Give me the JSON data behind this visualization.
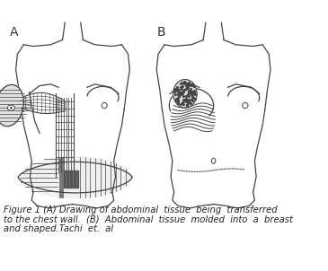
{
  "caption_line1": "Figure 1 (A) Drawing of abdominal  tissue  being  transferred",
  "caption_line2": "to the chest wall.  (B)  Abdominal  tissue  molded  into  a  breast",
  "caption_line3": "and shaped.Tachi  et.  al",
  "label_A": "A",
  "label_B": "B",
  "bg_color": "#ffffff",
  "line_color": "#444444",
  "caption_fontsize": 7.2,
  "label_fontsize": 10,
  "fig_width": 3.65,
  "fig_height": 3.02,
  "dpi": 100
}
